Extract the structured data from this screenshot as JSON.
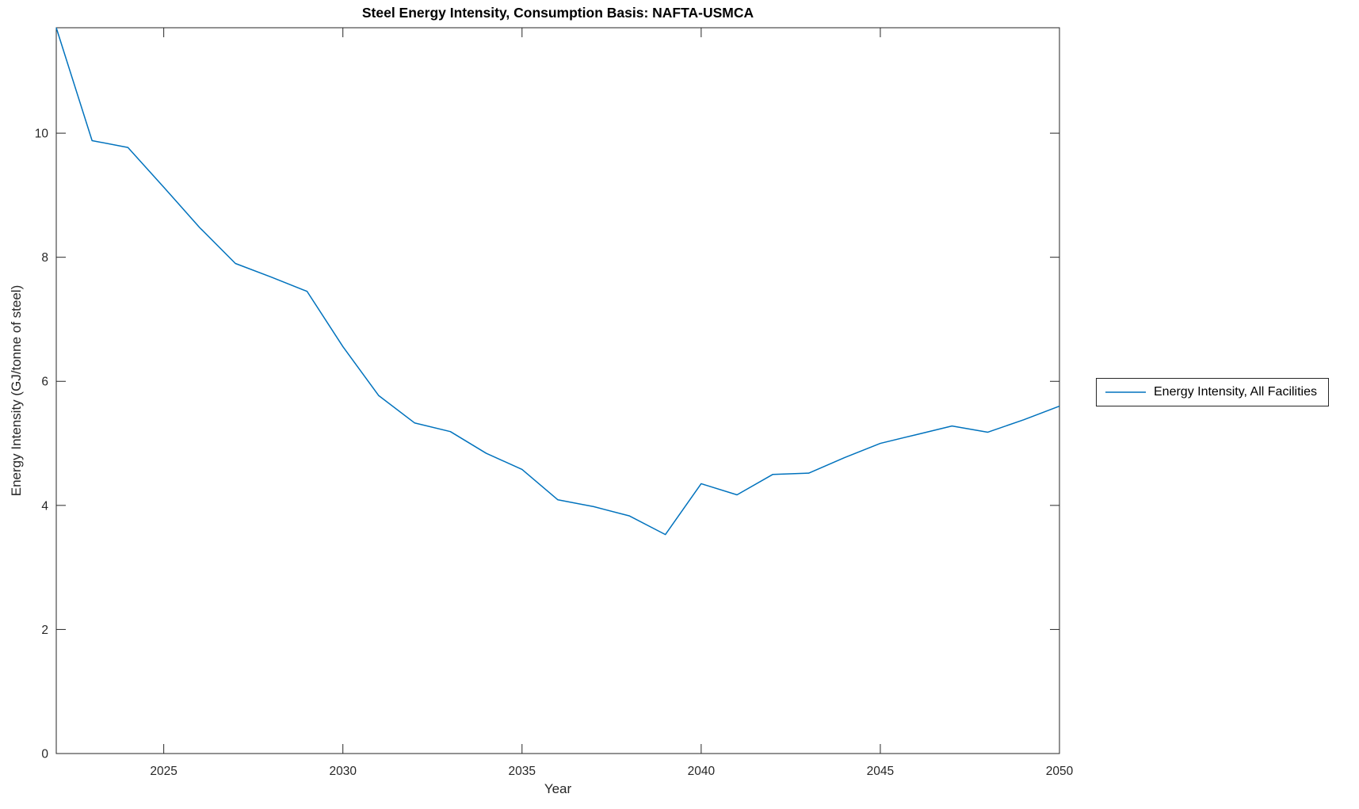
{
  "chart_data": {
    "type": "line",
    "title": "Steel Energy Intensity, Consumption Basis: NAFTA-USMCA",
    "xlabel": "Year",
    "ylabel": "Energy Intensity (GJ/tonne of steel)",
    "x": [
      2022,
      2023,
      2024,
      2025,
      2026,
      2027,
      2028,
      2029,
      2030,
      2031,
      2032,
      2033,
      2034,
      2035,
      2036,
      2037,
      2038,
      2039,
      2040,
      2041,
      2042,
      2043,
      2044,
      2045,
      2046,
      2047,
      2048,
      2049,
      2050
    ],
    "series": [
      {
        "name": "Energy Intensity, All Facilities",
        "color": "#0072BD",
        "values": [
          11.7,
          9.88,
          9.77,
          9.13,
          8.48,
          7.9,
          7.68,
          7.45,
          6.56,
          5.77,
          5.33,
          5.19,
          4.84,
          4.58,
          4.09,
          3.98,
          3.83,
          3.53,
          4.35,
          4.17,
          4.5,
          4.52,
          4.77,
          5.0,
          5.14,
          5.28,
          5.18,
          5.38,
          5.6
        ]
      }
    ],
    "xlim": [
      2022,
      2050
    ],
    "ylim": [
      0,
      11.7
    ],
    "xticks": [
      2025,
      2030,
      2035,
      2040,
      2045,
      2050
    ],
    "yticks": [
      0,
      2,
      4,
      6,
      8,
      10
    ],
    "grid": false,
    "legend_position": "right-outside",
    "axis_color": "#262626",
    "tick_direction": "in"
  }
}
